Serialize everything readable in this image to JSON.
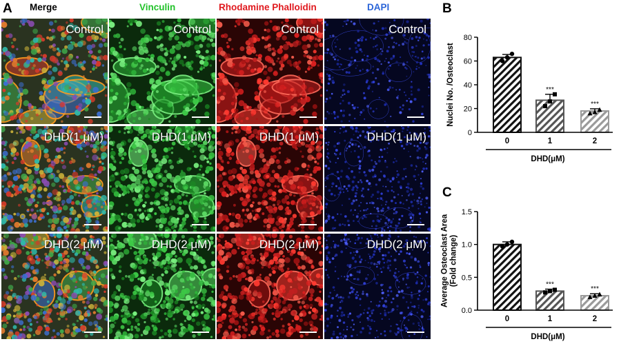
{
  "panel_a": {
    "letter": "A",
    "columns": [
      {
        "label": "Merge",
        "color": "#000000",
        "style": "merge"
      },
      {
        "label": "Vinculin",
        "color": "#22c22a",
        "style": "green"
      },
      {
        "label": "Rhodamine Phalloidin",
        "color": "#e0191e",
        "style": "red"
      },
      {
        "label": "DAPI",
        "color": "#2a64d8",
        "style": "blue"
      }
    ],
    "rows": [
      {
        "label": "Control"
      },
      {
        "label": "DHD(1 μM)"
      },
      {
        "label": "DHD(2 μM)"
      }
    ]
  },
  "chart_data": [
    {
      "panel": "B",
      "type": "bar",
      "ylabel": "Nuclei No. /Osteoclast",
      "xlabel": "DHD(μM)",
      "categories": [
        "0",
        "1",
        "2"
      ],
      "values": [
        63,
        27,
        18
      ],
      "error": [
        2.5,
        5,
        1.8
      ],
      "points": [
        [
          60,
          63,
          66
        ],
        [
          22,
          26,
          32
        ],
        [
          16,
          17,
          19
        ]
      ],
      "significance": [
        "",
        "***",
        "***"
      ],
      "ylim": [
        0,
        80
      ],
      "yticks": [
        0,
        20,
        40,
        60,
        80
      ]
    },
    {
      "panel": "C",
      "type": "bar",
      "ylabel": "Average Osteoclast Area (Fold change)",
      "xlabel": "DHD(μM)",
      "categories": [
        "0",
        "1",
        "2"
      ],
      "values": [
        1.0,
        0.29,
        0.22
      ],
      "error": [
        0.04,
        0.03,
        0.03
      ],
      "points": [
        [
          0.97,
          1.0,
          1.04
        ],
        [
          0.27,
          0.29,
          0.31
        ],
        [
          0.2,
          0.22,
          0.24
        ]
      ],
      "significance": [
        "",
        "***",
        "***"
      ],
      "ylim": [
        0,
        1.5
      ],
      "yticks": [
        "0.0",
        "0.5",
        "1.0",
        "1.5"
      ]
    }
  ]
}
